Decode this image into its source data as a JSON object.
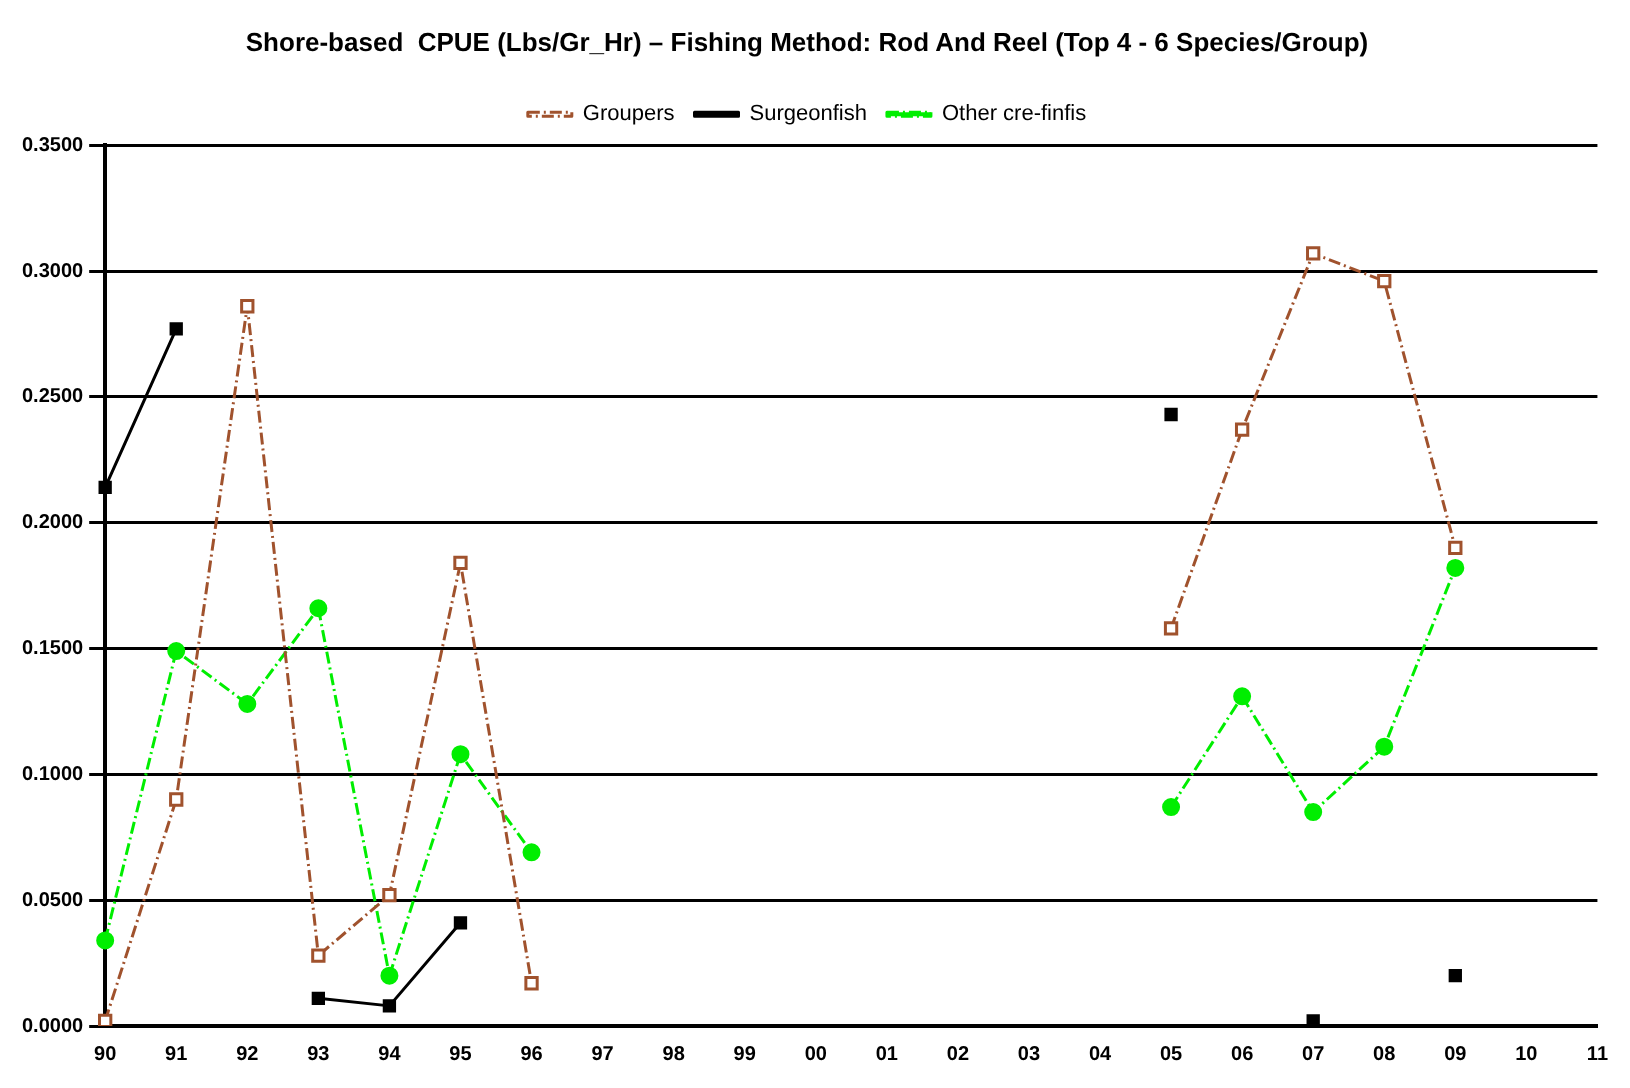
{
  "chart_data": {
    "type": "line",
    "title": "Shore-based  CPUE (Lbs/Gr_Hr) – Fishing Method: Rod And Reel (Top 4 - 6 Species/Group)",
    "categories": [
      "90",
      "91",
      "92",
      "93",
      "94",
      "95",
      "96",
      "97",
      "98",
      "99",
      "00",
      "01",
      "02",
      "03",
      "04",
      "05",
      "06",
      "07",
      "08",
      "09",
      "10",
      "11"
    ],
    "series": [
      {
        "name": "Groupers",
        "color": "#a0522d",
        "marker": "square",
        "line_style": "dashed",
        "values": [
          0.002,
          0.09,
          0.286,
          0.028,
          0.052,
          0.184,
          0.017,
          null,
          null,
          null,
          null,
          null,
          null,
          null,
          null,
          0.158,
          0.237,
          0.307,
          0.296,
          0.19,
          null,
          null
        ]
      },
      {
        "name": "Surgeonfish",
        "color": "#000000",
        "marker": "square",
        "line_style": "solid",
        "values": [
          0.214,
          0.277,
          null,
          0.011,
          0.008,
          0.041,
          null,
          null,
          null,
          null,
          null,
          null,
          null,
          null,
          null,
          0.243,
          null,
          0.002,
          null,
          0.02,
          null,
          null
        ]
      },
      {
        "name": "Other cre-finfis",
        "color": "#00ee00",
        "marker": "circle",
        "line_style": "dashed",
        "values": [
          0.034,
          0.149,
          0.128,
          0.166,
          0.02,
          0.108,
          0.069,
          null,
          null,
          null,
          null,
          null,
          null,
          null,
          null,
          0.087,
          0.131,
          0.085,
          0.111,
          0.182,
          null,
          null
        ]
      }
    ],
    "ylim": [
      0,
      0.35
    ],
    "yticks": [
      {
        "value": 0,
        "label": "0.0000"
      },
      {
        "value": 0.05,
        "label": "0.0500"
      },
      {
        "value": 0.1,
        "label": "0.1000"
      },
      {
        "value": 0.15,
        "label": "0.1500"
      },
      {
        "value": 0.2,
        "label": "0.2000"
      },
      {
        "value": 0.25,
        "label": "0.2500"
      },
      {
        "value": 0.3,
        "label": "0.3000"
      },
      {
        "value": 0.35,
        "label": "0.3500"
      }
    ],
    "grid": "y",
    "legend": "top"
  }
}
